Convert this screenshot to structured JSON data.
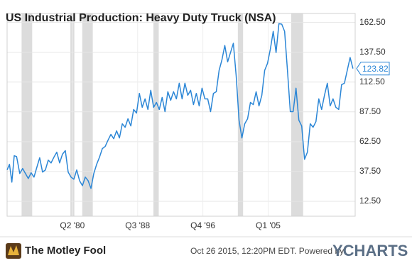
{
  "chart_data": {
    "type": "line",
    "title": "US Industrial Production: Heavy Duty Truck (NSA)",
    "color": "#2b86d6",
    "x": [
      1972.0,
      1972.3,
      1972.6,
      1972.9,
      1973.2,
      1973.6,
      1973.96,
      1974.32,
      1974.68,
      1975.04,
      1975.4,
      1975.76,
      1976.12,
      1976.48,
      1976.84,
      1977.2,
      1977.56,
      1977.92,
      1978.28,
      1978.64,
      1979.0,
      1979.36,
      1979.72,
      1980.08,
      1980.44,
      1980.8,
      1981.16,
      1981.52,
      1981.88,
      1982.24,
      1982.6,
      1982.96,
      1983.32,
      1983.68,
      1984.04,
      1984.4,
      1984.76,
      1985.12,
      1985.48,
      1985.84,
      1986.2,
      1986.56,
      1986.92,
      1987.28,
      1987.64,
      1988.0,
      1988.36,
      1988.72,
      1989.08,
      1989.44,
      1989.8,
      1990.16,
      1990.52,
      1990.88,
      1991.24,
      1991.6,
      1991.96,
      1992.32,
      1992.68,
      1993.04,
      1993.4,
      1993.76,
      1994.12,
      1994.48,
      1994.84,
      1995.2,
      1995.56,
      1995.92,
      1996.28,
      1996.64,
      1997.0,
      1997.36,
      1997.72,
      1998.08,
      1998.44,
      1998.8,
      1999.16,
      1999.52,
      1999.88,
      2000.24,
      2000.6,
      2000.96,
      2001.32,
      2001.68,
      2002.04,
      2002.4,
      2002.76,
      2003.12,
      2003.48,
      2003.84,
      2004.2,
      2004.56,
      2004.92,
      2005.28,
      2005.64,
      2006.0,
      2006.36,
      2006.72,
      2007.08,
      2007.44,
      2007.8,
      2008.16,
      2008.52,
      2008.88,
      2009.24,
      2009.6,
      2009.96,
      2010.32,
      2010.68,
      2011.04,
      2011.4,
      2011.76,
      2012.12,
      2012.48,
      2012.84,
      2013.2,
      2013.56,
      2013.92,
      2014.28,
      2014.64,
      2015.0,
      2015.36,
      2015.72
    ],
    "values": [
      38.8,
      43.5,
      28.6,
      50.7,
      50,
      35.8,
      40,
      35.8,
      31.6,
      36.4,
      32.8,
      41,
      49,
      37,
      38.8,
      47,
      44.7,
      49.5,
      53.7,
      44.7,
      52,
      55,
      37,
      32.8,
      31,
      38.8,
      29.8,
      25.6,
      32.8,
      29.8,
      23.3,
      35.8,
      43.5,
      49.5,
      56.7,
      58.5,
      63.8,
      68.6,
      65,
      71.6,
      65.6,
      77.5,
      74.6,
      81.7,
      75.7,
      89.5,
      86.5,
      103,
      91.3,
      98.4,
      89.5,
      105.6,
      91.3,
      95.4,
      89.5,
      99.6,
      87.7,
      104.4,
      97.2,
      104.4,
      98.4,
      111.5,
      98.4,
      111.5,
      101.4,
      105.6,
      93.6,
      103,
      92.5,
      107.4,
      98.4,
      98.4,
      87.7,
      103,
      104.4,
      122.3,
      131.2,
      143.2,
      129.4,
      137.2,
      145,
      117.5,
      80.5,
      65.6,
      77.5,
      81.7,
      95.4,
      93.6,
      104.4,
      92.5,
      101.4,
      122.3,
      128.2,
      140.2,
      155,
      137.2,
      161.5,
      161,
      155,
      122.3,
      87.7,
      87.7,
      107.4,
      80.5,
      75.7,
      47.7,
      53.7,
      77.5,
      74.6,
      79.3,
      98.4,
      89.5,
      101.4,
      111.5,
      92.5,
      98.4,
      91.3,
      89.5,
      110.3,
      111.5,
      122.3,
      133.1,
      123.82
    ],
    "last_value": 123.82,
    "xlim": [
      1972,
      2016
    ],
    "xticks": [
      {
        "value": 1980.25,
        "label": "Q2 '80"
      },
      {
        "value": 1988.5,
        "label": "Q3 '88"
      },
      {
        "value": 1996.75,
        "label": "Q4 '96"
      },
      {
        "value": 2005.0,
        "label": "Q1 '05"
      }
    ],
    "ylim": [
      0,
      170
    ],
    "yticks": [
      {
        "value": 12.5,
        "label": "12.50"
      },
      {
        "value": 37.5,
        "label": "37.50"
      },
      {
        "value": 62.5,
        "label": "62.50"
      },
      {
        "value": 87.5,
        "label": "87.50"
      },
      {
        "value": 112.5,
        "label": "112.50"
      },
      {
        "value": 137.5,
        "label": "137.50"
      },
      {
        "value": 162.5,
        "label": "162.50"
      }
    ],
    "recessions": [
      [
        1973.83,
        1975.17
      ],
      [
        1980.0,
        1980.5
      ],
      [
        1981.5,
        1982.83
      ],
      [
        1990.5,
        1991.17
      ],
      [
        2001.17,
        2001.83
      ],
      [
        2007.92,
        2009.42
      ]
    ],
    "recession_color": "#dcdcdc",
    "grid": true
  },
  "footer": {
    "brand": "The Motley Fool",
    "timestamp": "Oct 26 2015, 12:20PM EDT. Powered by",
    "provider": "YCHARTS"
  }
}
